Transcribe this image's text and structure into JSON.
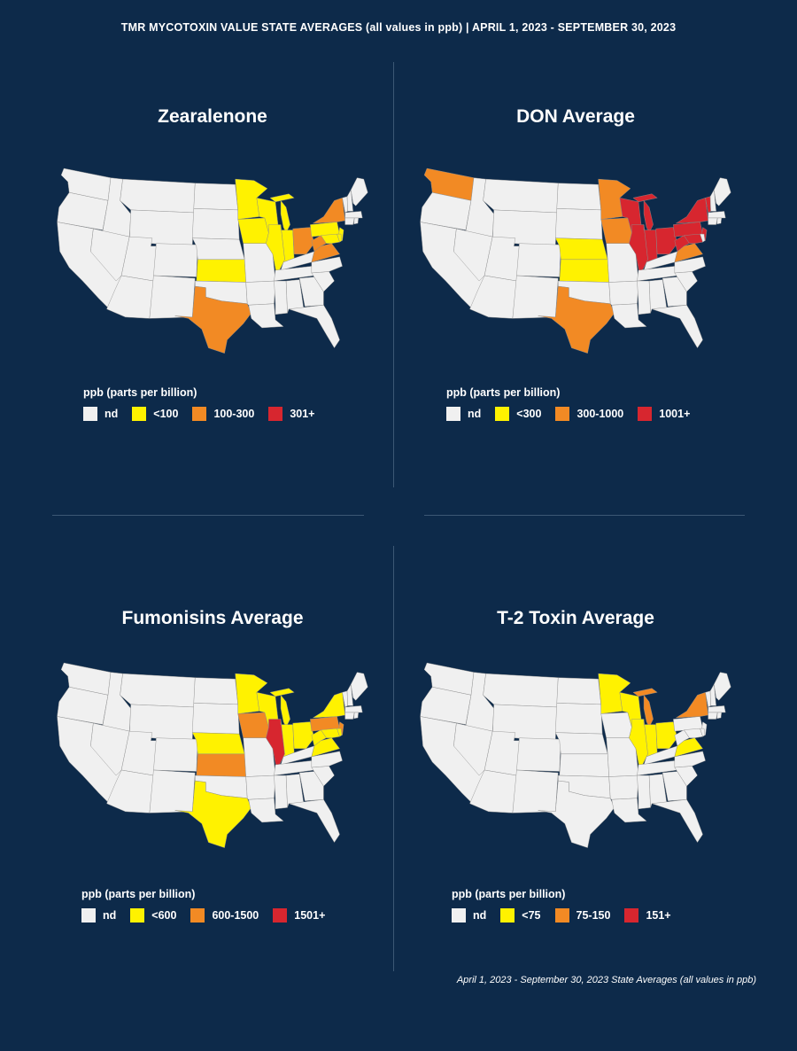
{
  "header": "TMR MYCOTOXIN VALUE STATE AVERAGES (all values in ppb) | APRIL 1, 2023 - SEPTEMBER 30, 2023",
  "footer": "April 1, 2023 - September 30, 2023 State Averages (all values in ppb)",
  "colors": {
    "background": "#0d2a4a",
    "nd": "#f0f0f0",
    "low": "#fff200",
    "mid": "#f28a24",
    "high": "#d7262f",
    "border": "#8e8e8e"
  },
  "panels": [
    {
      "title": "Zearalenone",
      "legend_title": "ppb (parts per billion)",
      "legend": [
        {
          "label": "nd",
          "color": "#f0f0f0"
        },
        {
          "label": "<100",
          "color": "#fff200"
        },
        {
          "label": "100-300",
          "color": "#f28a24"
        },
        {
          "label": "301+",
          "color": "#d7262f"
        }
      ],
      "states": {
        "MN": "low",
        "WI": "low",
        "MI": "low",
        "IA": "low",
        "IL": "low",
        "IN": "low",
        "KS": "low",
        "PA": "low",
        "NJ": "low",
        "MD": "low",
        "DE": "low",
        "TX": "mid",
        "OH": "mid",
        "NY": "mid",
        "VA": "mid",
        "WV": "mid"
      }
    },
    {
      "title": "DON Average",
      "legend_title": "ppb (parts per billion)",
      "legend": [
        {
          "label": "nd",
          "color": "#f0f0f0"
        },
        {
          "label": "<300",
          "color": "#fff200"
        },
        {
          "label": "300-1000",
          "color": "#f28a24"
        },
        {
          "label": "1001+",
          "color": "#d7262f"
        }
      ],
      "states": {
        "NE": "low",
        "KS": "low",
        "WA": "mid",
        "TX": "mid",
        "MN": "mid",
        "IA": "mid",
        "VA": "mid",
        "WI": "high",
        "MI": "high",
        "IL": "high",
        "IN": "high",
        "OH": "high",
        "PA": "high",
        "NY": "high",
        "WV": "high",
        "MD": "high",
        "NJ": "high",
        "VT": "high"
      }
    },
    {
      "title": "Fumonisins Average",
      "legend_title": "ppb (parts per billion)",
      "legend": [
        {
          "label": "nd",
          "color": "#f0f0f0"
        },
        {
          "label": "<600",
          "color": "#fff200"
        },
        {
          "label": "600-1500",
          "color": "#f28a24"
        },
        {
          "label": "1501+",
          "color": "#d7262f"
        }
      ],
      "states": {
        "TX": "low",
        "NE": "low",
        "MN": "low",
        "WI": "low",
        "MI": "low",
        "IN": "low",
        "OH": "low",
        "NY": "low",
        "WV": "low",
        "VA": "low",
        "MD": "low",
        "DE": "low",
        "KS": "mid",
        "IA": "mid",
        "PA": "mid",
        "NJ": "mid",
        "IL": "high"
      }
    },
    {
      "title": "T-2 Toxin Average",
      "legend_title": "ppb (parts per billion)",
      "legend": [
        {
          "label": "nd",
          "color": "#f0f0f0"
        },
        {
          "label": "<75",
          "color": "#fff200"
        },
        {
          "label": "75-150",
          "color": "#f28a24"
        },
        {
          "label": "151+",
          "color": "#d7262f"
        }
      ],
      "states": {
        "MN": "low",
        "WI": "low",
        "IL": "low",
        "IN": "low",
        "OH": "low",
        "VA": "low",
        "MI": "mid",
        "NY": "mid"
      }
    }
  ]
}
